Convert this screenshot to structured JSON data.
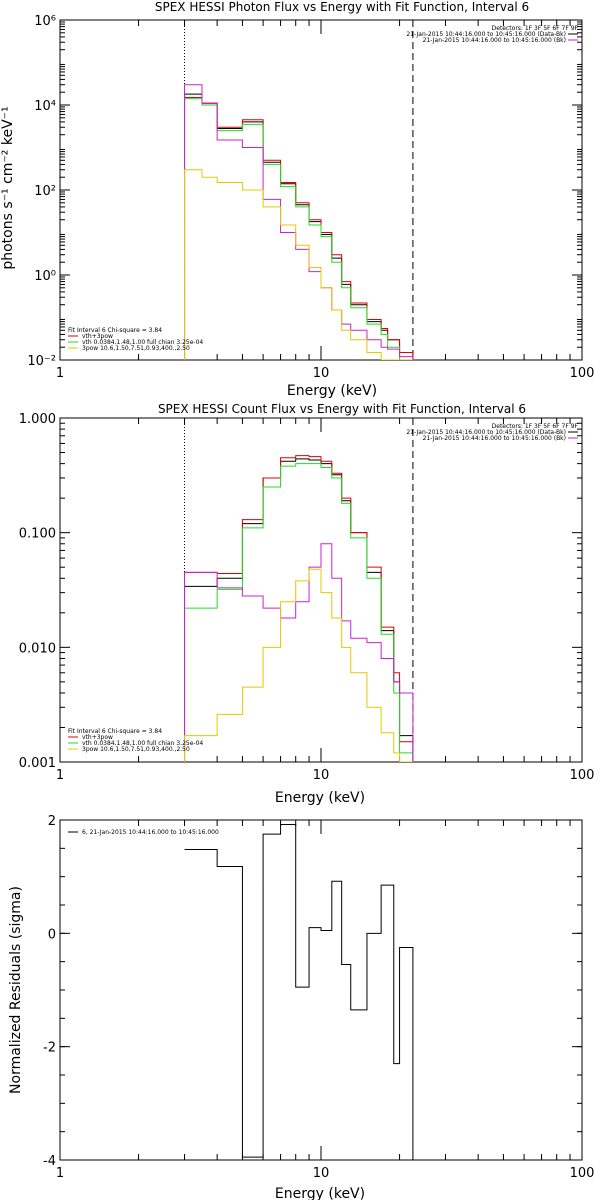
{
  "colors": {
    "black": "#000000",
    "red": "#e00000",
    "green": "#22dd22",
    "magenta": "#cc22cc",
    "yellow": "#e6c800"
  },
  "chart_data": [
    {
      "type": "line",
      "panel": "photon",
      "title": "SPEX HESSI Photon Flux vs Energy with Fit Function, Interval 6",
      "xlabel": "Energy (keV)",
      "ylabel": "photons s⁻¹ cm⁻² keV⁻¹",
      "xscale": "log",
      "yscale": "log",
      "xlim": [
        1,
        100
      ],
      "ylim": [
        0.01,
        1000000
      ],
      "xticks": [
        1,
        10,
        100
      ],
      "xtick_labels": [
        "1",
        "10",
        "100"
      ],
      "yticks": [
        0.01,
        1,
        100,
        10000,
        1000000
      ],
      "ytick_labels": [
        "10⁻²",
        "10⁰",
        "10²",
        "10⁴",
        "10⁶"
      ],
      "vlines": [
        {
          "x": 3,
          "style": "dotted"
        },
        {
          "x": 22.5,
          "style": "dashed"
        }
      ],
      "legend_right": [
        "Detectors: 1F 3F 5F 6F 7F 9F",
        "21-Jan-2015 10:44:16.000 to 10:45:16.000 (Data-Bk)",
        "21-Jan-2015 10:44:16.000 to 10:45:16.000 (Bk)"
      ],
      "legend_left": [
        "Fit Interval 6   Chi-square = 3.84",
        "vth+3pow",
        "vth 0.0384,1.48,1.00  full chian 3.25e-04",
        "3pow 10.6,1.50,7.51,0.93,400.,2.50"
      ],
      "bin_edges": [
        3,
        3.5,
        4,
        5,
        6,
        7,
        8,
        9,
        10,
        11,
        12,
        13,
        15,
        17,
        18,
        20,
        22.5
      ],
      "series": [
        {
          "name": "21-Jan-2015 10:44:16.000 to 10:45:16.000 (Data-Bk)",
          "color": "black",
          "values": [
            18000,
            11000,
            2800,
            4000,
            450,
            140,
            45,
            18,
            9,
            2.5,
            0.6,
            0.2,
            0.08,
            0.05,
            0.03,
            0.015
          ]
        },
        {
          "name": "vth+3pow",
          "color": "red",
          "values": [
            15000,
            11000,
            3000,
            4500,
            500,
            150,
            50,
            20,
            10,
            3,
            0.7,
            0.22,
            0.09,
            0.055,
            0.03,
            0.015
          ]
        },
        {
          "name": "vth 0.0384,1.48,1.00  full chian 3.25e-04",
          "color": "green",
          "values": [
            14000,
            10000,
            2500,
            3500,
            400,
            120,
            40,
            15,
            8,
            2,
            0.5,
            0.17,
            0.07,
            0.04,
            0.02,
            0.01
          ]
        },
        {
          "name": "21-Jan-2015 10:44:16.000 to 10:45:16.000 (Bk)",
          "color": "magenta",
          "values": [
            30000,
            11000,
            1500,
            1000,
            60,
            10,
            4,
            1.2,
            0.5,
            0.15,
            0.07,
            0.05,
            0.03,
            0.02,
            0.018,
            0.012
          ]
        },
        {
          "name": "3pow 10.6,1.50,7.51,0.93,400.,2.50",
          "color": "yellow",
          "values": [
            300,
            200,
            150,
            100,
            40,
            15,
            5,
            1.5,
            0.5,
            0.15,
            0.05,
            0.03,
            0.015,
            0.01,
            0.007,
            0.005
          ]
        }
      ]
    },
    {
      "type": "line",
      "panel": "count",
      "title": "SPEX HESSI Count Flux vs Energy with Fit Function, Interval 6",
      "xlabel": "Energy (keV)",
      "ylabel": "",
      "xscale": "log",
      "yscale": "log",
      "xlim": [
        1,
        100
      ],
      "ylim": [
        0.001,
        1
      ],
      "xticks": [
        1,
        10,
        100
      ],
      "xtick_labels": [
        "1",
        "10",
        "100"
      ],
      "yticks": [
        0.001,
        0.01,
        0.1,
        1
      ],
      "ytick_labels": [
        "0.001",
        "0.010",
        "0.100",
        "1.000"
      ],
      "vlines": [
        {
          "x": 3,
          "style": "dotted"
        },
        {
          "x": 22.5,
          "style": "dashed"
        }
      ],
      "legend_right": [
        "Detectors: 1F 3F 5F 6F 7F 9F",
        "21-Jan-2015 10:44:16.000 to 10:45:16.000 (Data-Bk)",
        "21-Jan-2015 10:44:16.000 to 10:45:16.000 (Bk)"
      ],
      "legend_left": [
        "Fit Interval 6   Chi-square = 3.84",
        "vth+3pow",
        "vth 0.0384,1.48,1.00  full chian 3.25e-04",
        "3pow 10.6,1.50,7.51,0.93,400.,2.50"
      ],
      "bin_edges": [
        3,
        4,
        5,
        6,
        7,
        8,
        9,
        10,
        11,
        12,
        13,
        15,
        17,
        19,
        20,
        22.5
      ],
      "series": [
        {
          "name": "21-Jan-2015 10:44:16.000 to 10:45:16.000 (Data-Bk)",
          "color": "black",
          "values": [
            0.034,
            0.04,
            0.12,
            0.3,
            0.42,
            0.44,
            0.43,
            0.4,
            0.32,
            0.19,
            0.1,
            0.045,
            0.014,
            0.005,
            0.0017
          ]
        },
        {
          "name": "vth+3pow",
          "color": "red",
          "values": [
            0.045,
            0.044,
            0.13,
            0.3,
            0.45,
            0.47,
            0.46,
            0.42,
            0.33,
            0.2,
            0.1,
            0.05,
            0.015,
            0.006,
            0.0015
          ]
        },
        {
          "name": "vth 0.0384,1.48,1.00  full chian 3.25e-04",
          "color": "green",
          "values": [
            0.022,
            0.032,
            0.11,
            0.25,
            0.38,
            0.4,
            0.4,
            0.37,
            0.3,
            0.18,
            0.09,
            0.04,
            0.013,
            0.004,
            0.0012
          ]
        },
        {
          "name": "21-Jan-2015 10:44:16.000 to 10:45:16.000 (Bk)",
          "color": "magenta",
          "values": [
            0.045,
            0.033,
            0.028,
            0.022,
            0.018,
            0.025,
            0.05,
            0.08,
            0.04,
            0.017,
            0.012,
            0.011,
            0.008,
            0.005,
            0.004
          ]
        },
        {
          "name": "3pow 10.6,1.50,7.51,0.93,400.,2.50",
          "color": "yellow",
          "values": [
            0.0017,
            0.0026,
            0.0045,
            0.01,
            0.025,
            0.038,
            0.048,
            0.03,
            0.018,
            0.01,
            0.006,
            0.003,
            0.0018,
            0.0012,
            0.001
          ]
        }
      ]
    },
    {
      "type": "line",
      "panel": "residuals",
      "title": "",
      "xlabel": "Energy (keV)",
      "ylabel": "Normalized Residuals (sigma)",
      "xscale": "log",
      "yscale": "linear",
      "xlim": [
        1,
        100
      ],
      "ylim": [
        -4,
        2
      ],
      "xticks": [
        1,
        10,
        100
      ],
      "xtick_labels": [
        "1",
        "10",
        "100"
      ],
      "yticks": [
        -4,
        -2,
        0,
        2
      ],
      "ytick_labels": [
        "-4",
        "-2",
        "0",
        "2"
      ],
      "legend_left": [
        "6, 21-Jan-2015 10:44:16.000 to 10:45:16.000"
      ],
      "bin_edges": [
        3,
        4,
        5,
        6,
        7,
        8,
        9,
        10,
        11,
        12,
        13,
        15,
        17,
        19,
        20,
        22.5
      ],
      "series": [
        {
          "name": "6, 21-Jan-2015 10:44:16.000 to 10:45:16.000",
          "color": "black",
          "values": [
            1.48,
            1.18,
            -3.95,
            1.75,
            1.92,
            -0.95,
            0.1,
            0.05,
            0.92,
            -0.55,
            -1.35,
            0.0,
            0.85,
            -2.3,
            -0.25
          ]
        }
      ]
    }
  ]
}
